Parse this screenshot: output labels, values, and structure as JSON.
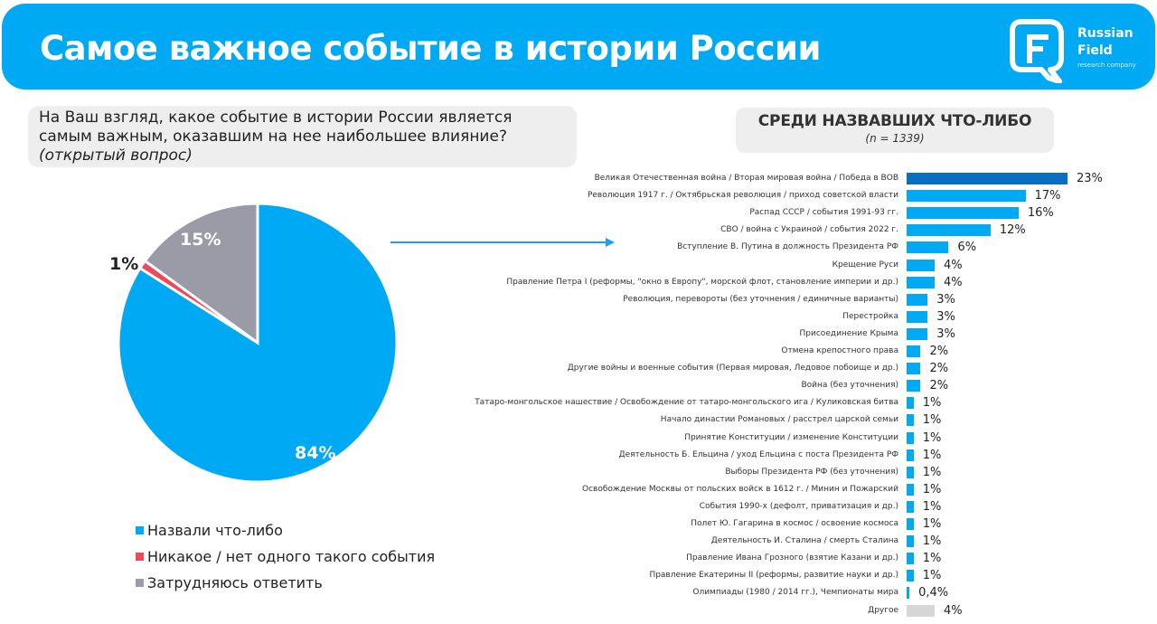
{
  "header": {
    "title": "Самое важное событие в истории России",
    "logo": {
      "line1": "Russian",
      "line2": "Field",
      "line3": "research company"
    }
  },
  "question": {
    "text": "На Ваш взгляд, какое событие в истории России является самым важным, оказавшим на нее наибольшее влияние?",
    "note": "(открытый вопрос)"
  },
  "subset": {
    "title": "СРЕДИ НАЗВАВШИХ ЧТО-ЛИБО",
    "n": "(n = 1339)"
  },
  "colors": {
    "header_bg": "#00a9f4",
    "blue": "#00a9f4",
    "dark_blue": "#0a6fc2",
    "red": "#f0475a",
    "gray": "#9b9aa7",
    "light_gray": "#d6d6d6"
  },
  "chart_data": [
    {
      "type": "pie",
      "title": "",
      "slices": [
        {
          "label": "Назвали что-либо",
          "value": 84,
          "display": "84%",
          "color": "#00a9f4"
        },
        {
          "label": "Никакое / нет одного такого события",
          "value": 1,
          "display": "1%",
          "color": "#f0475a"
        },
        {
          "label": "Затрудняюсь ответить",
          "value": 15,
          "display": "15%",
          "color": "#9b9aa7"
        }
      ],
      "legend_position": "bottom"
    },
    {
      "type": "bar",
      "orientation": "horizontal",
      "title": "СРЕДИ НАЗВАВШИХ ЧТО-ЛИБО",
      "subtitle": "(n = 1339)",
      "grid": false,
      "categories": [
        "Великая Отечественная война / Вторая мировая война / Победа в ВОВ",
        "Революция 1917 г. / Октябрьская революция / приход советской власти",
        "Распад СССР / события 1991-93 гг.",
        "СВО / война с Украиной / события 2022 г.",
        "Вступление В. Путина в должность Президента РФ",
        "Крещение Руси",
        "Правление Петра I (реформы, \"окно в Европу\", морской флот, становление империи и др.)",
        "Революция, перевороты (без уточнения / единичные варианты)",
        "Перестройка",
        "Присоединение Крыма",
        "Отмена крепостного права",
        "Другие войны и военные события (Первая мировая, Ледовое побоище и др.)",
        "Война (без уточнения)",
        "Татаро-монгольское нашествие / Освобождение от татаро-монгольского ига / Куликовская битва",
        "Начало династии Романовых / расстрел царской семьи",
        "Принятие Конституции / изменение Конституции",
        "Деятельность Б. Ельцина / уход Ельцина с поста Президента РФ",
        "Выборы Президента РФ (без уточнения)",
        "Освобождение Москвы от польских войск в 1612 г. / Минин и Пожарский",
        "События 1990-х (дефолт, приватизация и др.)",
        "Полет Ю. Гагарина в космос / освоение космоса",
        "Деятельность И. Сталина / смерть Сталина",
        "Правление Ивана Грозного (взятие Казани и др.)",
        "Правление Екатерины II (реформы, развитие науки и др.)",
        "Олимпиады (1980 / 2014 гг.), Чемпионаты мира",
        "Другое"
      ],
      "values": [
        23,
        17,
        16,
        12,
        6,
        4,
        4,
        3,
        3,
        3,
        2,
        2,
        2,
        1,
        1,
        1,
        1,
        1,
        1,
        1,
        1,
        1,
        1,
        1,
        0.4,
        4
      ],
      "value_labels": [
        "23%",
        "17%",
        "16%",
        "12%",
        "6%",
        "4%",
        "4%",
        "3%",
        "3%",
        "3%",
        "2%",
        "2%",
        "2%",
        "1%",
        "1%",
        "1%",
        "1%",
        "1%",
        "1%",
        "1%",
        "1%",
        "1%",
        "1%",
        "1%",
        "0,4%",
        "4%"
      ],
      "bar_colors": [
        "#0a6fc2",
        "#00a9f4",
        "#00a9f4",
        "#00a9f4",
        "#00a9f4",
        "#00a9f4",
        "#00a9f4",
        "#00a9f4",
        "#00a9f4",
        "#00a9f4",
        "#00a9f4",
        "#00a9f4",
        "#00a9f4",
        "#00a9f4",
        "#00a9f4",
        "#00a9f4",
        "#00a9f4",
        "#00a9f4",
        "#00a9f4",
        "#00a9f4",
        "#00a9f4",
        "#00a9f4",
        "#00a9f4",
        "#00a9f4",
        "#00a9f4",
        "#d6d6d6"
      ],
      "xlabel": "",
      "ylabel": "",
      "xlim": [
        0,
        23
      ]
    }
  ]
}
